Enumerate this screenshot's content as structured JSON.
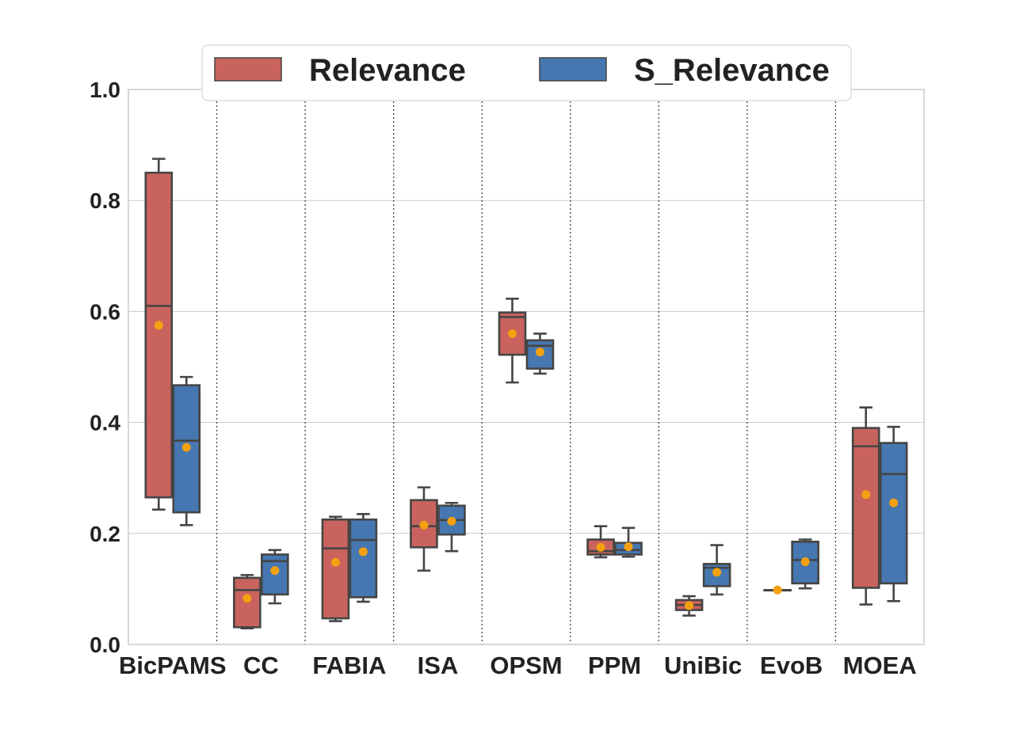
{
  "chart_data": {
    "type": "box",
    "title": "",
    "xlabel": "",
    "ylabel": "",
    "ylim": [
      0.0,
      1.0
    ],
    "yticks": [
      "0.0",
      "0.2",
      "0.4",
      "0.6",
      "0.8",
      "1.0"
    ],
    "grid": "horizontal",
    "legend_position": "top",
    "categories": [
      "BicPAMS",
      "CC",
      "FABIA",
      "ISA",
      "OPSM",
      "PPM",
      "UniBic",
      "EvoB",
      "MOEA"
    ],
    "series": [
      {
        "name": "Relevance",
        "color": "#c8635d",
        "boxes": [
          {
            "whislo": 0.243,
            "q1": 0.265,
            "med": 0.61,
            "q3": 0.85,
            "whishi": 0.875,
            "mean": 0.575
          },
          {
            "whislo": 0.029,
            "q1": 0.031,
            "med": 0.098,
            "q3": 0.12,
            "whishi": 0.125,
            "mean": 0.083
          },
          {
            "whislo": 0.042,
            "q1": 0.047,
            "med": 0.173,
            "q3": 0.225,
            "whishi": 0.23,
            "mean": 0.148
          },
          {
            "whislo": 0.133,
            "q1": 0.175,
            "med": 0.213,
            "q3": 0.26,
            "whishi": 0.283,
            "mean": 0.215
          },
          {
            "whislo": 0.472,
            "q1": 0.522,
            "med": 0.59,
            "q3": 0.598,
            "whishi": 0.623,
            "mean": 0.56
          },
          {
            "whislo": 0.157,
            "q1": 0.162,
            "med": 0.168,
            "q3": 0.189,
            "whishi": 0.213,
            "mean": 0.175
          },
          {
            "whislo": 0.052,
            "q1": 0.062,
            "med": 0.071,
            "q3": 0.08,
            "whishi": 0.087,
            "mean": 0.07
          },
          {
            "whislo": 0.098,
            "q1": 0.098,
            "med": 0.098,
            "q3": 0.098,
            "whishi": 0.098,
            "mean": 0.098
          },
          {
            "whislo": 0.072,
            "q1": 0.102,
            "med": 0.357,
            "q3": 0.39,
            "whishi": 0.427,
            "mean": 0.27
          }
        ]
      },
      {
        "name": "S_Relevance",
        "color": "#4677b0",
        "boxes": [
          {
            "whislo": 0.215,
            "q1": 0.238,
            "med": 0.367,
            "q3": 0.467,
            "whishi": 0.482,
            "mean": 0.355
          },
          {
            "whislo": 0.074,
            "q1": 0.09,
            "med": 0.15,
            "q3": 0.162,
            "whishi": 0.17,
            "mean": 0.133
          },
          {
            "whislo": 0.077,
            "q1": 0.085,
            "med": 0.188,
            "q3": 0.225,
            "whishi": 0.235,
            "mean": 0.167
          },
          {
            "whislo": 0.168,
            "q1": 0.198,
            "med": 0.224,
            "q3": 0.25,
            "whishi": 0.255,
            "mean": 0.222
          },
          {
            "whislo": 0.488,
            "q1": 0.497,
            "med": 0.538,
            "q3": 0.548,
            "whishi": 0.56,
            "mean": 0.527
          },
          {
            "whislo": 0.158,
            "q1": 0.162,
            "med": 0.17,
            "q3": 0.183,
            "whishi": 0.21,
            "mean": 0.176
          },
          {
            "whislo": 0.09,
            "q1": 0.105,
            "med": 0.138,
            "q3": 0.145,
            "whishi": 0.179,
            "mean": 0.13
          },
          {
            "whislo": 0.101,
            "q1": 0.11,
            "med": 0.152,
            "q3": 0.185,
            "whishi": 0.189,
            "mean": 0.149
          },
          {
            "whislo": 0.078,
            "q1": 0.11,
            "med": 0.307,
            "q3": 0.363,
            "whishi": 0.392,
            "mean": 0.255
          }
        ]
      }
    ],
    "mean_marker_color": "#f5a011",
    "box_edge_color": "#454545"
  }
}
